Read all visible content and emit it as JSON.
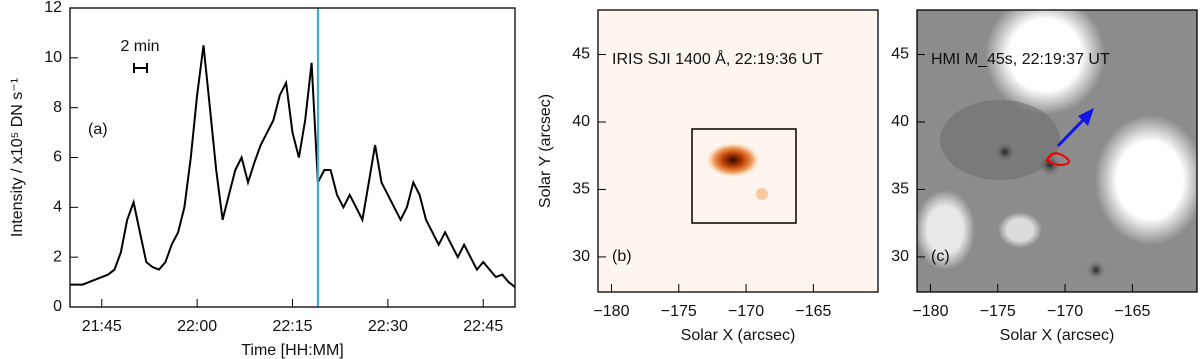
{
  "chart_data": [
    {
      "type": "line",
      "panel_label": "(a)",
      "xlabel": "Time [HH:MM]",
      "ylabel": "Intensity / x10⁵ DN s⁻¹",
      "x": [
        "21:40",
        "21:41",
        "21:42",
        "21:43",
        "21:44",
        "21:45",
        "21:46",
        "21:47",
        "21:48",
        "21:49",
        "21:50",
        "21:51",
        "21:52",
        "21:53",
        "21:54",
        "21:55",
        "21:56",
        "21:57",
        "21:58",
        "21:59",
        "22:00",
        "22:01",
        "22:02",
        "22:03",
        "22:04",
        "22:05",
        "22:06",
        "22:07",
        "22:08",
        "22:09",
        "22:10",
        "22:11",
        "22:12",
        "22:13",
        "22:14",
        "22:15",
        "22:16",
        "22:17",
        "22:18",
        "22:19",
        "22:20",
        "22:21",
        "22:22",
        "22:23",
        "22:24",
        "22:25",
        "22:26",
        "22:27",
        "22:28",
        "22:29",
        "22:30",
        "22:31",
        "22:32",
        "22:33",
        "22:34",
        "22:35",
        "22:36",
        "22:37",
        "22:38",
        "22:39",
        "22:40",
        "22:41",
        "22:42",
        "22:43",
        "22:44",
        "22:45",
        "22:46",
        "22:47",
        "22:48",
        "22:49",
        "22:50"
      ],
      "series": [
        {
          "color": "#000000",
          "values": [
            0.9,
            0.9,
            0.9,
            1.0,
            1.1,
            1.2,
            1.3,
            1.5,
            2.2,
            3.5,
            4.2,
            3.0,
            1.8,
            1.6,
            1.5,
            1.8,
            2.5,
            3.0,
            4.0,
            6.0,
            8.5,
            10.5,
            8.0,
            5.5,
            3.5,
            4.5,
            5.5,
            6.0,
            5.0,
            5.8,
            6.5,
            7.0,
            7.5,
            8.5,
            9.0,
            7.0,
            6.0,
            7.5,
            9.8,
            5.0,
            5.5,
            5.5,
            4.5,
            4.0,
            4.5,
            4.0,
            3.5,
            5.0,
            6.5,
            5.0,
            4.5,
            4.0,
            3.5,
            4.0,
            5.0,
            4.5,
            3.5,
            3.0,
            2.5,
            3.0,
            2.5,
            2.0,
            2.5,
            2.0,
            1.5,
            1.8,
            1.5,
            1.2,
            1.3,
            1.0,
            0.8
          ]
        }
      ],
      "xlim": [
        "21:40",
        "22:50"
      ],
      "xticks": [
        "21:45",
        "22:00",
        "22:15",
        "22:30",
        "22:45"
      ],
      "ylim": [
        0,
        12
      ],
      "yticks": [
        0,
        2,
        4,
        6,
        8,
        10,
        12
      ],
      "marker": "22:19",
      "marker_color": "#1fb4e0",
      "scale_bar_label": "2 min"
    },
    {
      "type": "image",
      "panel_label": "(b)",
      "title": "IRIS SJI 1400 Å, 22:19:36 UT",
      "xlabel": "Solar X (arcsec)",
      "ylabel": "Solar Y (arcsec)",
      "xlim": [
        -181,
        -160.2
      ],
      "ylim": [
        27.4,
        48.3
      ],
      "xticks": [
        {
          "value": -180,
          "label": "−180"
        },
        {
          "value": -175,
          "label": "−175"
        },
        {
          "value": -170,
          "label": "−170"
        },
        {
          "value": -165,
          "label": "−165"
        }
      ],
      "yticks": [
        30,
        35,
        40,
        45
      ]
    },
    {
      "type": "image",
      "panel_label": "(c)",
      "title": "HMI M_45s, 22:19:37 UT",
      "xlabel": "Solar X (arcsec)",
      "xlim": [
        -181,
        -160.2
      ],
      "ylim": [
        27.4,
        48.3
      ],
      "xticks": [
        {
          "value": -180,
          "label": "−180"
        },
        {
          "value": -175,
          "label": "−175"
        },
        {
          "value": -170,
          "label": "−170"
        },
        {
          "value": -165,
          "label": "−165"
        }
      ],
      "yticks": [
        30,
        35,
        40,
        45
      ]
    }
  ]
}
